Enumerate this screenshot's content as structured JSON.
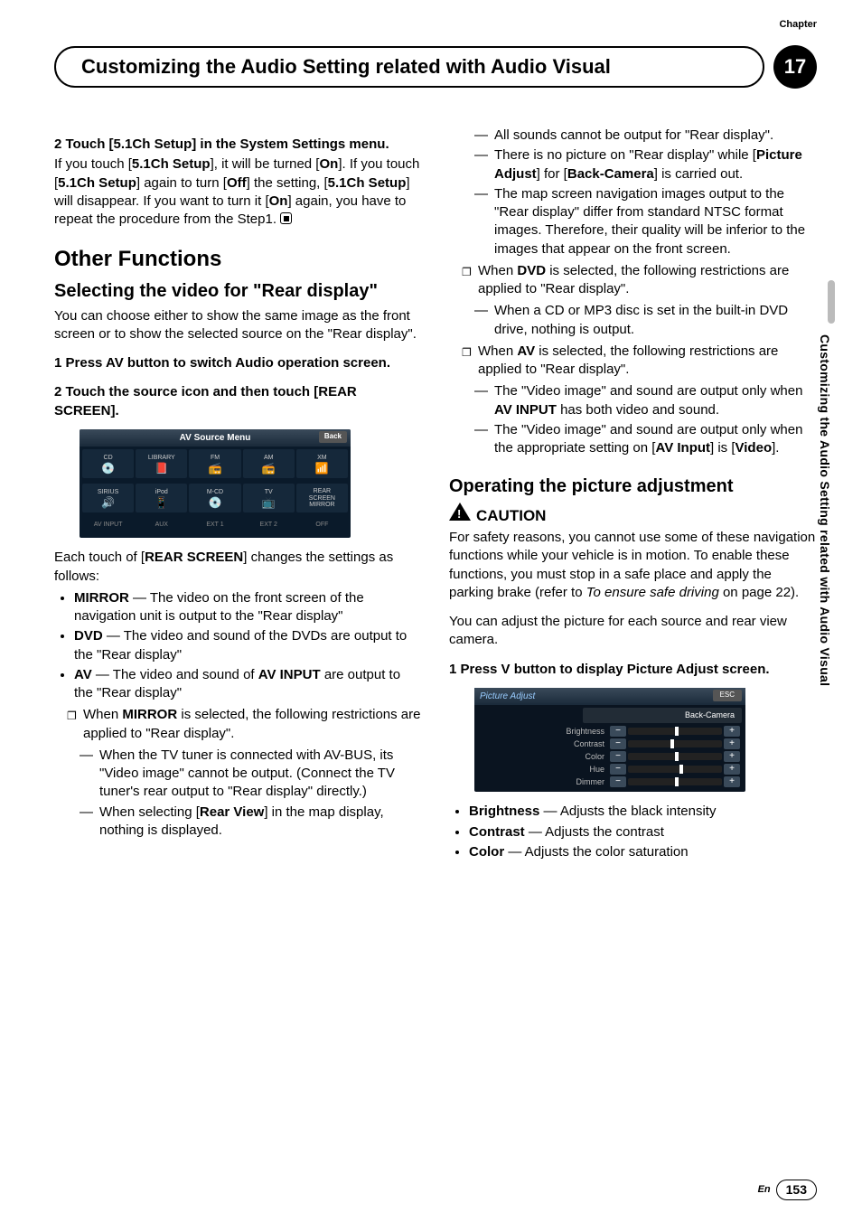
{
  "chapter_label": "Chapter",
  "chapter_number": "17",
  "page_title": "Customizing the Audio Setting related with Audio Visual",
  "side_tab": "Customizing the Audio Setting related with Audio Visual",
  "left": {
    "step2_head": "2   Touch [5.1Ch Setup] in the System Settings menu.",
    "step2_body_1": "If you touch [",
    "step2_body_2": "5.1Ch Setup",
    "step2_body_3": "], it will be turned [",
    "step2_body_4": "On",
    "step2_body_5": "]. If you touch [",
    "step2_body_6": "5.1Ch Setup",
    "step2_body_7": "] again to turn [",
    "step2_body_8": "Off",
    "step2_body_9": "] the setting, [",
    "step2_body_10": "5.1Ch Setup",
    "step2_body_11": "] will disappear. If you want to turn it [",
    "step2_body_12": "On",
    "step2_body_13": "] again, you have to repeat the procedure from the Step1.",
    "h_other": "Other Functions",
    "h_select": "Selecting the video for \"Rear display\"",
    "select_body": "You can choose either to show the same image as the front screen or to show the selected source on the \"Rear display\".",
    "sel_step1": "1   Press AV button to switch Audio operation screen.",
    "sel_step2": "2   Touch the source icon and then touch [REAR SCREEN].",
    "ss_title": "AV Source Menu",
    "ss_back": "Back",
    "ss_cells": [
      "CD",
      "LIBRARY",
      "FM",
      "AM",
      "XM"
    ],
    "ss_icons": [
      "💿",
      "📕",
      "📻",
      "📻",
      "📶"
    ],
    "ss_cells2": [
      "SIRIUS",
      "iPod",
      "M-CD",
      "TV",
      "REAR\nSCREEN\nMIRROR"
    ],
    "ss_icons2": [
      "🔊",
      "📱",
      "💿",
      "📺",
      ""
    ],
    "ss_row3": [
      "AV INPUT",
      "AUX",
      "EXT 1",
      "EXT 2",
      "OFF"
    ],
    "after_ss_1": "Each touch of [",
    "after_ss_2": "REAR SCREEN",
    "after_ss_3": "] changes the settings as follows:",
    "bul_mirror_l": "MIRROR",
    "bul_mirror_t": " — The video on the front screen of the navigation unit is output to the \"Rear display\"",
    "bul_dvd_l": "DVD",
    "bul_dvd_t": " — The video and sound of the DVDs are output to the \"Rear display\"",
    "bul_av_l": "AV",
    "bul_av_t1": " — The video and sound of ",
    "bul_av_t2": "AV INPUT",
    "bul_av_t3": " are output to the \"Rear display\"",
    "sq_mirror_1": "When ",
    "sq_mirror_2": "MIRROR",
    "sq_mirror_3": " is selected, the following restrictions are applied to \"Rear display\".",
    "d_mirror1": "When the TV tuner is connected with AV-BUS, its \"Video image\" cannot be output. (Connect the TV tuner's rear output to \"Rear display\" directly.)",
    "d_mirror2_a": "When selecting [",
    "d_mirror2_b": "Rear View",
    "d_mirror2_c": "] in the map display, nothing is displayed."
  },
  "right": {
    "d_r1": "All sounds cannot be output for \"Rear display\".",
    "d_r2_a": "There is no picture on \"Rear display\" while [",
    "d_r2_b": "Picture Adjust",
    "d_r2_c": "] for [",
    "d_r2_d": "Back-Camera",
    "d_r2_e": "] is carried out.",
    "d_r3": "The map screen navigation images output to the \"Rear display\" differ from standard NTSC format images. Therefore, their quality will be inferior to the images that appear on the front screen.",
    "sq_dvd_a": "When ",
    "sq_dvd_b": "DVD",
    "sq_dvd_c": " is selected, the following restrictions are applied to \"Rear display\".",
    "d_dvd1": "When a CD or MP3 disc is set in the built-in DVD drive, nothing is output.",
    "sq_av_a": "When ",
    "sq_av_b": "AV",
    "sq_av_c": " is selected, the following restrictions are applied to \"Rear display\".",
    "d_av1_a": "The \"Video image\" and sound are output only when ",
    "d_av1_b": "AV INPUT",
    "d_av1_c": " has both video and sound.",
    "d_av2_a": "The \"Video image\" and sound are output only when the appropriate setting on [",
    "d_av2_b": "AV Input",
    "d_av2_c": "] is [",
    "d_av2_d": "Video",
    "d_av2_e": "].",
    "h_pic": "Operating the picture adjustment",
    "caution": "CAUTION",
    "caution_body_a": "For safety reasons, you cannot use some of these navigation functions while your vehicle is in motion. To enable these functions, you must stop in a safe place and apply the parking brake (refer to ",
    "caution_body_i": "To ensure safe driving",
    "caution_body_b": " on page 22).",
    "pic_body": "You can adjust the picture for each source and rear view camera.",
    "pic_step1": "1   Press V button to display Picture Adjust screen.",
    "pa_title": "Picture Adjust",
    "pa_esc": "ESC",
    "pa_sub": "Back-Camera",
    "pa_rows": [
      "Brightness",
      "Contrast",
      "Color",
      "Hue",
      "Dimmer"
    ],
    "pa_positions": [
      50,
      45,
      50,
      55,
      50
    ],
    "b_bright_l": "Brightness",
    "b_bright_t": " — Adjusts the black intensity",
    "b_contrast_l": "Contrast",
    "b_contrast_t": " — Adjusts the contrast",
    "b_color_l": "Color",
    "b_color_t": " — Adjusts the color saturation"
  },
  "page_en": "En",
  "page_num": "153"
}
